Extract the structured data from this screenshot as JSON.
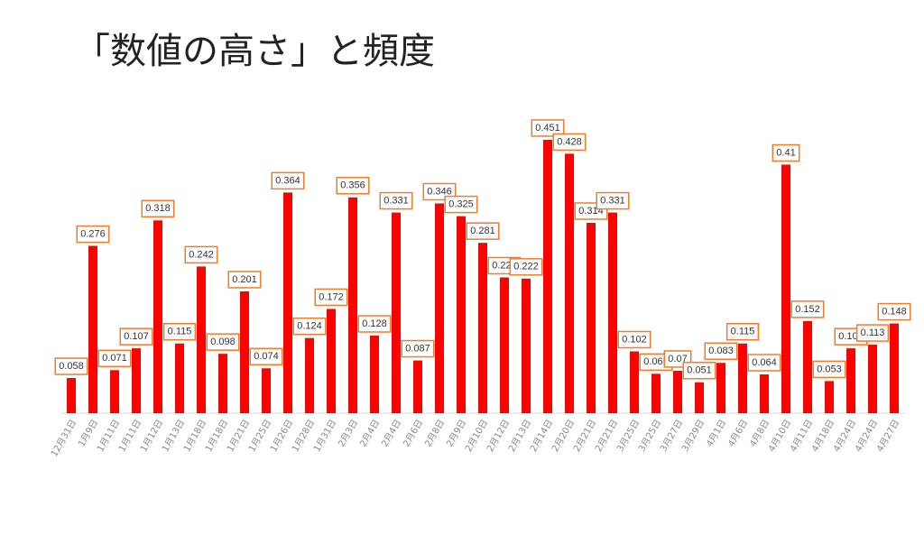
{
  "chart_data": {
    "type": "bar",
    "title": "「数値の高さ」と頻度",
    "categories": [
      "12月31日",
      "1月9日",
      "1月11日",
      "1月11日",
      "1月12日",
      "1月13日",
      "1月18日",
      "1月18日",
      "1月21日",
      "1月25日",
      "1月26日",
      "1月28日",
      "1月31日",
      "2月3日",
      "2月4日",
      "2月4日",
      "2月6日",
      "2月8日",
      "2月9日",
      "2月10日",
      "2月12日",
      "2月13日",
      "2月14日",
      "2月20日",
      "2月21日",
      "2月21日",
      "3月25日",
      "3月25日",
      "3月27日",
      "3月29日",
      "4月1日",
      "4月6日",
      "4月8日",
      "4月10日",
      "4月11日",
      "4月18日",
      "4月24日",
      "4月24日",
      "4月27日"
    ],
    "values": [
      0.058,
      0.276,
      0.071,
      0.107,
      0.318,
      0.115,
      0.242,
      0.098,
      0.201,
      0.074,
      0.364,
      0.124,
      0.172,
      0.356,
      0.128,
      0.331,
      0.087,
      0.346,
      0.325,
      0.281,
      0.224,
      0.222,
      0.451,
      0.428,
      0.314,
      0.331,
      0.102,
      0.065,
      0.07,
      0.051,
      0.083,
      0.115,
      0.064,
      0.41,
      0.152,
      0.053,
      0.107,
      0.113,
      0.148
    ],
    "color": "#ff0000",
    "label_border_color": "#ed7d31",
    "ylim": [
      0,
      0.5
    ]
  }
}
